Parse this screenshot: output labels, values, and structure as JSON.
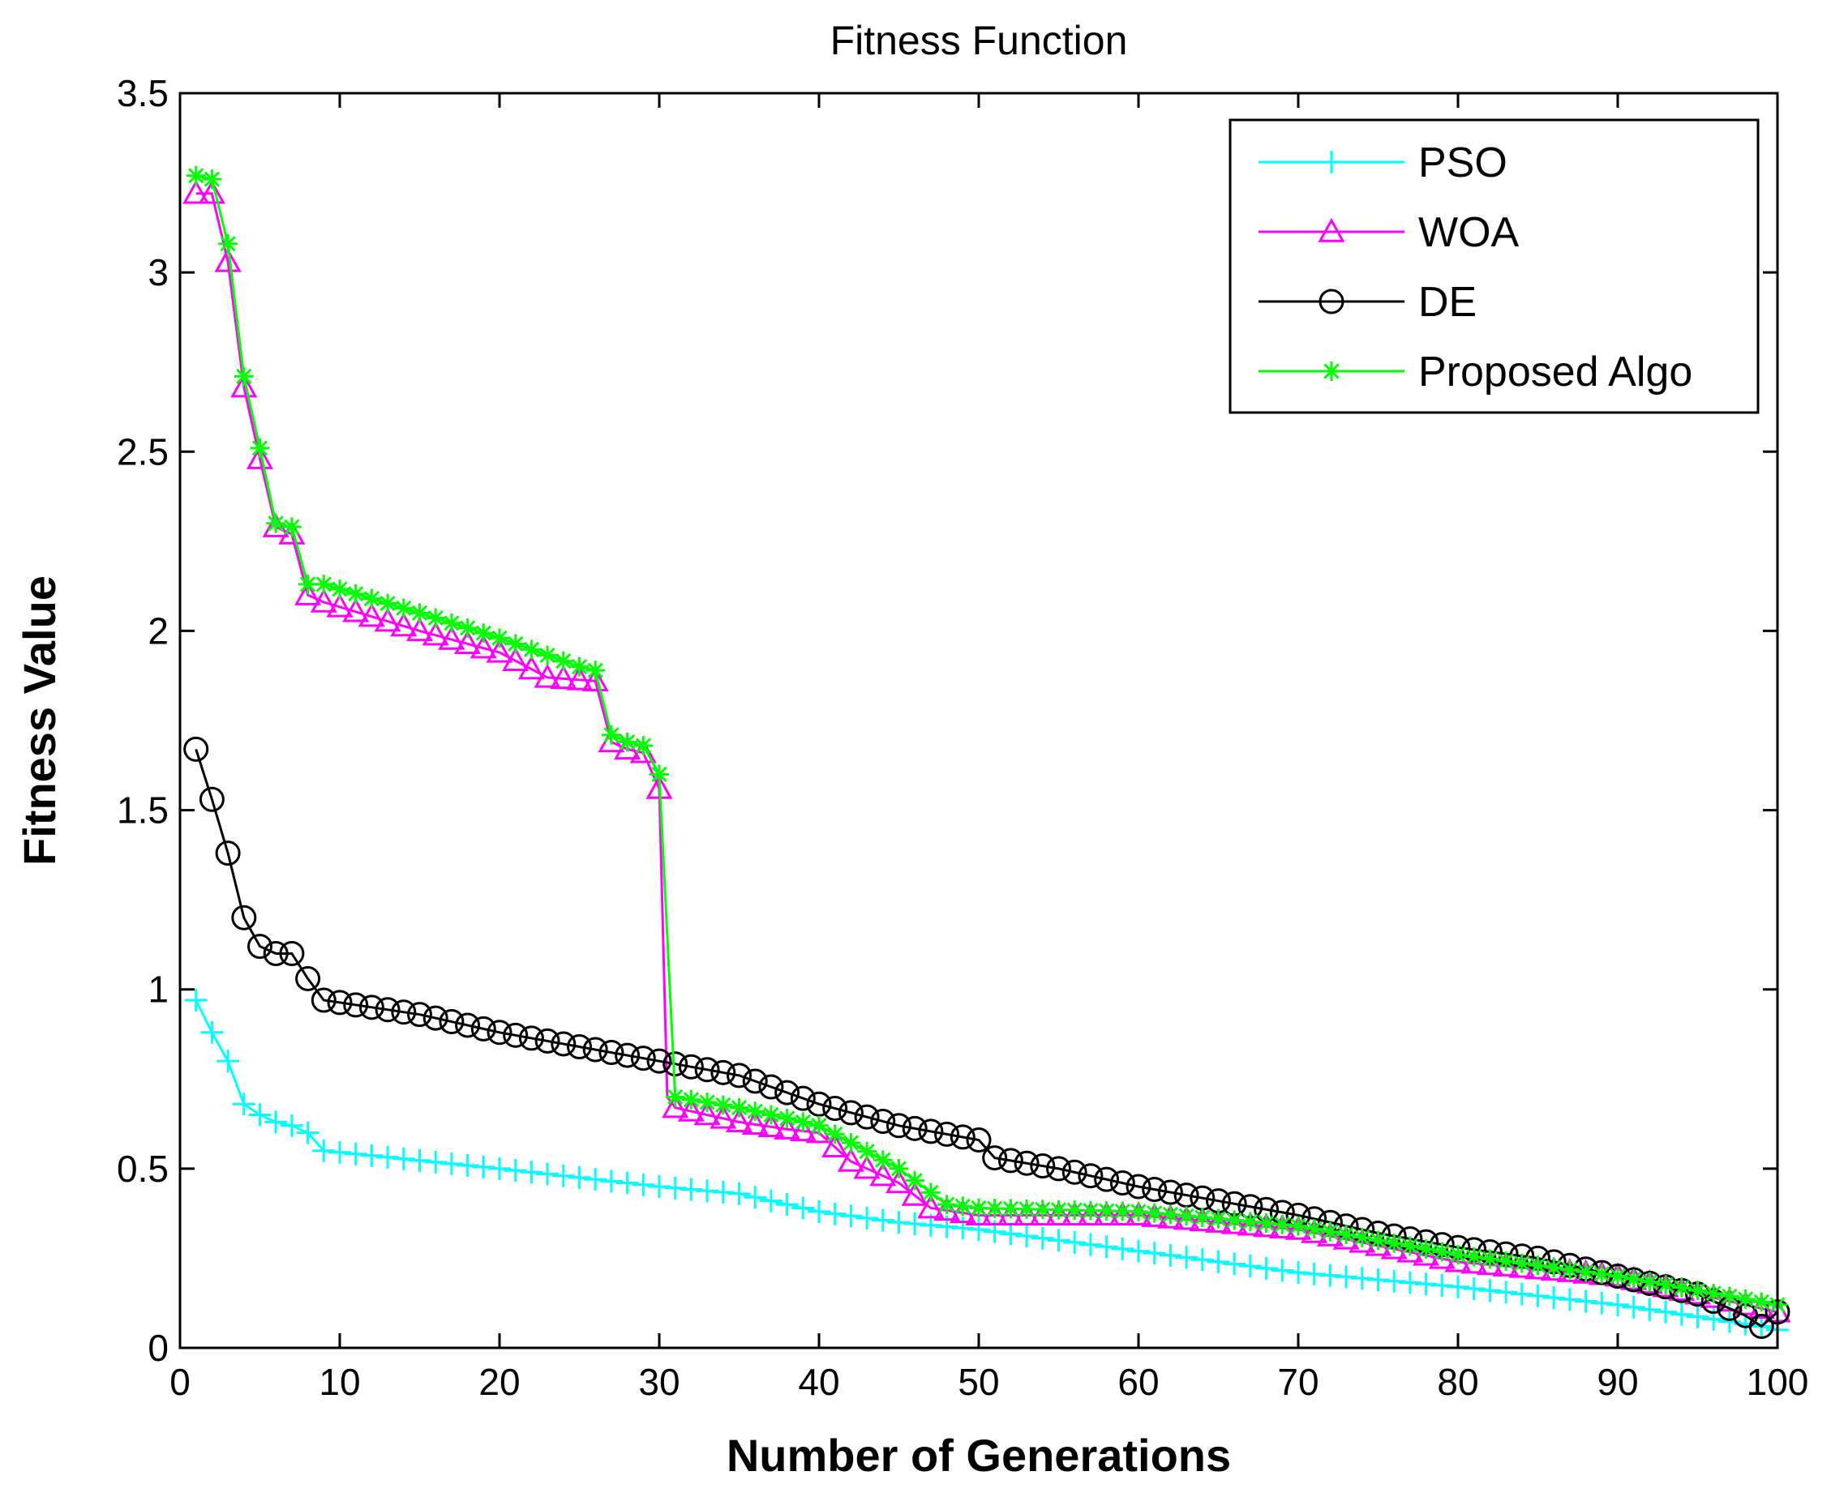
{
  "chart_data": {
    "type": "line",
    "title": "Fitness Function",
    "xlabel": "Number of Generations",
    "ylabel": "Fitness Value",
    "xlim": [
      0,
      100
    ],
    "ylim": [
      0,
      3.5
    ],
    "xticks": [
      0,
      10,
      20,
      30,
      40,
      50,
      60,
      70,
      80,
      90,
      100
    ],
    "xtick_labels": [
      "0",
      "10",
      "20",
      "30",
      "40",
      "50",
      "60",
      "70",
      "80",
      "90",
      "100"
    ],
    "yticks": [
      0,
      0.5,
      1,
      1.5,
      2,
      2.5,
      3,
      3.5
    ],
    "ytick_labels": [
      "0",
      "0.5",
      "1",
      "1.5",
      "2",
      "2.5",
      "3",
      "3.5"
    ],
    "grid": false,
    "legend_position": "top-right",
    "series": [
      {
        "name": "PSO",
        "color": "#00ffff",
        "marker": "plus",
        "keypoints": [
          [
            1,
            0.97
          ],
          [
            2,
            0.88
          ],
          [
            3,
            0.8
          ],
          [
            4,
            0.68
          ],
          [
            5,
            0.65
          ],
          [
            6,
            0.63
          ],
          [
            7,
            0.62
          ],
          [
            8,
            0.6
          ],
          [
            9,
            0.55
          ],
          [
            20,
            0.5
          ],
          [
            30,
            0.45
          ],
          [
            35,
            0.43
          ],
          [
            40,
            0.38
          ],
          [
            45,
            0.35
          ],
          [
            50,
            0.33
          ],
          [
            60,
            0.27
          ],
          [
            70,
            0.21
          ],
          [
            80,
            0.17
          ],
          [
            90,
            0.12
          ],
          [
            99,
            0.06
          ],
          [
            100,
            0.05
          ]
        ]
      },
      {
        "name": "WOA",
        "color": "#ff00ff",
        "marker": "triangle",
        "keypoints": [
          [
            1,
            3.22
          ],
          [
            2,
            3.22
          ],
          [
            3,
            3.03
          ],
          [
            4,
            2.68
          ],
          [
            5,
            2.48
          ],
          [
            6,
            2.29
          ],
          [
            7,
            2.27
          ],
          [
            8,
            2.1
          ],
          [
            9,
            2.08
          ],
          [
            15,
            2.0
          ],
          [
            20,
            1.94
          ],
          [
            23,
            1.87
          ],
          [
            26,
            1.86
          ],
          [
            27,
            1.69
          ],
          [
            28,
            1.67
          ],
          [
            29,
            1.66
          ],
          [
            30,
            1.56
          ],
          [
            30.5,
            0.7
          ],
          [
            31,
            0.67
          ],
          [
            35,
            0.63
          ],
          [
            38,
            0.61
          ],
          [
            40,
            0.6
          ],
          [
            42,
            0.52
          ],
          [
            45,
            0.46
          ],
          [
            47,
            0.39
          ],
          [
            50,
            0.37
          ],
          [
            60,
            0.37
          ],
          [
            70,
            0.33
          ],
          [
            80,
            0.24
          ],
          [
            90,
            0.2
          ],
          [
            100,
            0.1
          ]
        ]
      },
      {
        "name": "DE",
        "color": "#000000",
        "marker": "circle",
        "keypoints": [
          [
            1,
            1.67
          ],
          [
            2,
            1.53
          ],
          [
            3,
            1.38
          ],
          [
            4,
            1.2
          ],
          [
            5,
            1.12
          ],
          [
            6,
            1.1
          ],
          [
            7,
            1.1
          ],
          [
            8,
            1.03
          ],
          [
            9,
            0.97
          ],
          [
            12,
            0.95
          ],
          [
            15,
            0.93
          ],
          [
            20,
            0.88
          ],
          [
            25,
            0.84
          ],
          [
            30,
            0.8
          ],
          [
            35,
            0.76
          ],
          [
            40,
            0.68
          ],
          [
            45,
            0.62
          ],
          [
            50,
            0.58
          ],
          [
            51,
            0.53
          ],
          [
            55,
            0.5
          ],
          [
            60,
            0.45
          ],
          [
            65,
            0.41
          ],
          [
            70,
            0.37
          ],
          [
            75,
            0.32
          ],
          [
            80,
            0.28
          ],
          [
            85,
            0.25
          ],
          [
            90,
            0.2
          ],
          [
            95,
            0.15
          ],
          [
            98,
            0.09
          ],
          [
            99,
            0.06
          ],
          [
            100,
            0.1
          ]
        ]
      },
      {
        "name": "Proposed Algo",
        "color": "#00ff00",
        "marker": "star",
        "keypoints": [
          [
            1,
            3.27
          ],
          [
            2,
            3.26
          ],
          [
            3,
            3.08
          ],
          [
            4,
            2.71
          ],
          [
            5,
            2.51
          ],
          [
            6,
            2.3
          ],
          [
            7,
            2.29
          ],
          [
            8,
            2.13
          ],
          [
            9,
            2.13
          ],
          [
            15,
            2.05
          ],
          [
            20,
            1.98
          ],
          [
            25,
            1.9
          ],
          [
            26,
            1.89
          ],
          [
            27,
            1.71
          ],
          [
            28,
            1.69
          ],
          [
            29,
            1.68
          ],
          [
            30,
            1.6
          ],
          [
            31,
            0.7
          ],
          [
            35,
            0.67
          ],
          [
            40,
            0.62
          ],
          [
            45,
            0.5
          ],
          [
            48,
            0.4
          ],
          [
            50,
            0.39
          ],
          [
            60,
            0.38
          ],
          [
            70,
            0.34
          ],
          [
            80,
            0.26
          ],
          [
            90,
            0.2
          ],
          [
            100,
            0.12
          ]
        ]
      }
    ]
  }
}
